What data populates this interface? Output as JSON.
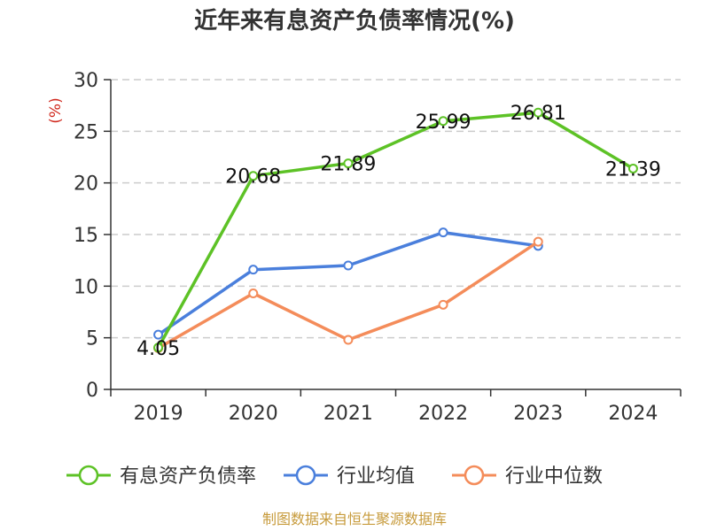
{
  "chart_data": {
    "type": "line",
    "title": "近年来有息资产负债率情况(%)",
    "y_unit": "(%)",
    "categories": [
      "2019",
      "2020",
      "2021",
      "2022",
      "2023",
      "2024"
    ],
    "ylim": [
      0,
      30
    ],
    "yticks": [
      0,
      5,
      10,
      15,
      20,
      25,
      30
    ],
    "grid": true,
    "legend_position": "bottom",
    "series": [
      {
        "name": "有息资产负债率",
        "color": "#5dc226",
        "values": [
          4.05,
          20.68,
          21.89,
          25.99,
          26.81,
          21.39
        ],
        "labels": [
          "4.05",
          "20.68",
          "21.89",
          "25.99",
          "26.81",
          "21.39"
        ]
      },
      {
        "name": "行业均值",
        "color": "#4a7fdc",
        "values": [
          5.3,
          11.6,
          12.0,
          15.2,
          13.9,
          null
        ]
      },
      {
        "name": "行业中位数",
        "color": "#f48c5a",
        "values": [
          4.0,
          9.3,
          4.8,
          8.2,
          14.3,
          null
        ]
      }
    ],
    "source": "制图数据来自恒生聚源数据库",
    "colors": {
      "unit": "#d12a1f",
      "source": "#c79b3c",
      "axis": "#333333",
      "grid": "#cccccc"
    }
  }
}
